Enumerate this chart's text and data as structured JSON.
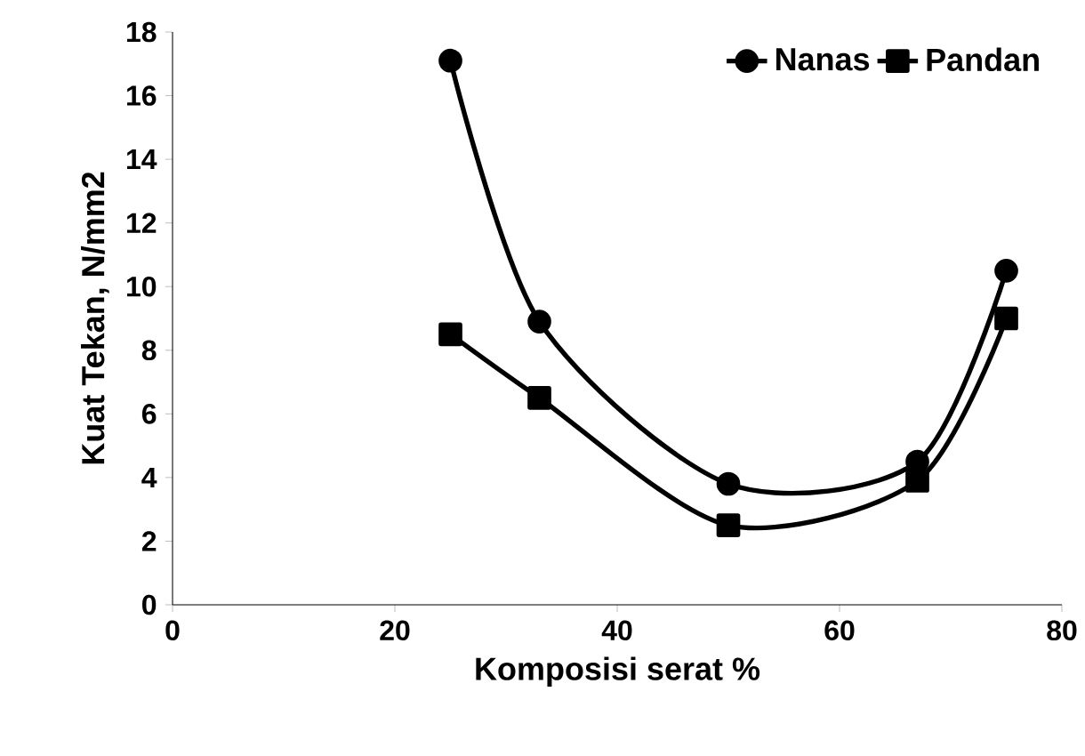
{
  "chart_data": {
    "type": "line",
    "xlabel": "Komposisi serat %",
    "ylabel": "Kuat  Tekan, N/mm2",
    "xlim": [
      0,
      80
    ],
    "ylim": [
      0,
      18
    ],
    "xticks": [
      0,
      20,
      40,
      60,
      80
    ],
    "yticks": [
      0,
      2,
      4,
      6,
      8,
      10,
      12,
      14,
      16,
      18
    ],
    "legend": "top right",
    "grid": false,
    "line_style": "solid",
    "series": [
      {
        "name": "Nanas",
        "color": "#000000",
        "marker": "circle",
        "x": [
          25,
          33,
          50,
          67,
          75
        ],
        "values": [
          17.1,
          8.9,
          3.8,
          4.5,
          10.5
        ]
      },
      {
        "name": "Pandan",
        "color": "#000000",
        "marker": "square",
        "x": [
          25,
          33,
          50,
          67,
          75
        ],
        "values": [
          8.5,
          6.5,
          2.5,
          3.9,
          9.0
        ]
      }
    ]
  }
}
